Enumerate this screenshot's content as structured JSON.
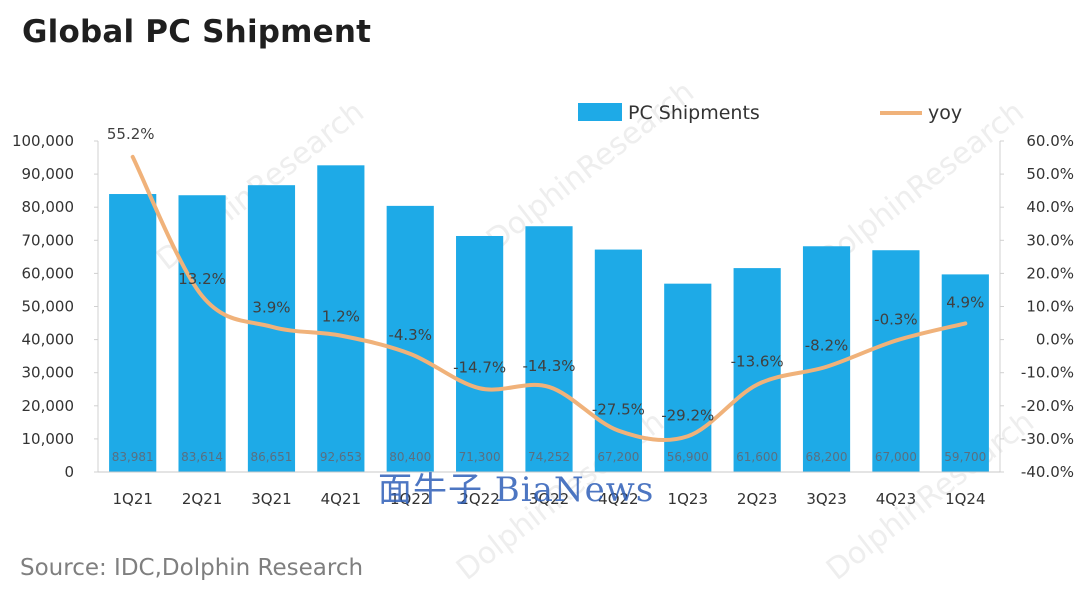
{
  "title": "Global PC Shipment",
  "source": "Source: IDC,Dolphin Research",
  "watermark": "DolphinResearch",
  "watermark2": "面牛子 BiaNews",
  "chart_data": {
    "type": "bar",
    "categories": [
      "1Q21",
      "2Q21",
      "3Q21",
      "4Q21",
      "1Q22",
      "2Q22",
      "3Q22",
      "4Q22",
      "1Q23",
      "2Q23",
      "3Q23",
      "4Q23",
      "1Q24"
    ],
    "series": [
      {
        "name": "PC Shipments",
        "type": "bar",
        "axis": "left",
        "color": "#1eaae7",
        "values": [
          83981,
          83614,
          86651,
          92653,
          80400,
          71300,
          74252,
          67200,
          56900,
          61600,
          68200,
          67000,
          59700
        ],
        "labels": [
          "83,981",
          "83,614",
          "86,651",
          "92,653",
          "80,400",
          "71,300",
          "74,252",
          "67,200",
          "56,900",
          "61,600",
          "68,200",
          "67,000",
          "59,700"
        ]
      },
      {
        "name": "yoy",
        "type": "line",
        "axis": "right",
        "color": "#f0b27a",
        "values": [
          55.2,
          13.2,
          3.9,
          1.2,
          -4.3,
          -14.7,
          -14.3,
          -27.5,
          -29.2,
          -13.6,
          -8.2,
          -0.3,
          4.9
        ],
        "labels": [
          "55.2%",
          "13.2%",
          "3.9%",
          "1.2%",
          "-4.3%",
          "-14.7%",
          "-14.3%",
          "-27.5%",
          "-29.2%",
          "-13.6%",
          "-8.2%",
          "-0.3%",
          "4.9%"
        ]
      }
    ],
    "y_left": {
      "ylim": [
        0,
        100000
      ],
      "ticks": [
        "0",
        "10,000",
        "20,000",
        "30,000",
        "40,000",
        "50,000",
        "60,000",
        "70,000",
        "80,000",
        "90,000",
        "100,000"
      ]
    },
    "y_right": {
      "ylim": [
        -40,
        60
      ],
      "ticks": [
        "-40.0%",
        "-30.0%",
        "-20.0%",
        "-10.0%",
        "0.0%",
        "10.0%",
        "20.0%",
        "30.0%",
        "40.0%",
        "50.0%",
        "60.0%"
      ]
    },
    "legend": {
      "position": "top-right",
      "items": [
        "PC Shipments",
        "yoy"
      ]
    },
    "grid": false
  }
}
